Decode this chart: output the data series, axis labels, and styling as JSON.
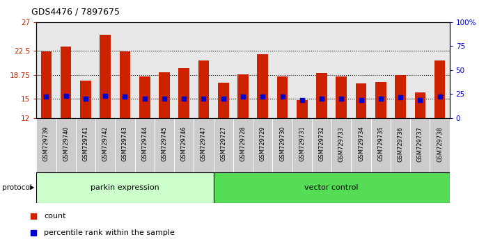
{
  "title": "GDS4476 / 7897675",
  "samples": [
    "GSM729739",
    "GSM729740",
    "GSM729741",
    "GSM729742",
    "GSM729743",
    "GSM729744",
    "GSM729745",
    "GSM729746",
    "GSM729747",
    "GSM729727",
    "GSM729728",
    "GSM729729",
    "GSM729730",
    "GSM729731",
    "GSM729732",
    "GSM729733",
    "GSM729734",
    "GSM729735",
    "GSM729736",
    "GSM729737",
    "GSM729738"
  ],
  "bar_values": [
    22.4,
    23.2,
    17.9,
    25.0,
    22.4,
    18.5,
    19.2,
    19.8,
    21.0,
    17.5,
    18.8,
    22.0,
    18.5,
    14.8,
    19.0,
    18.5,
    17.4,
    17.6,
    18.7,
    16.0,
    21.0
  ],
  "percentile_values": [
    15.4,
    15.5,
    15.0,
    15.5,
    15.4,
    15.0,
    15.0,
    15.0,
    15.0,
    15.0,
    15.4,
    15.4,
    15.4,
    14.8,
    15.0,
    15.0,
    14.8,
    15.0,
    15.3,
    14.8,
    15.4
  ],
  "parkin_count": 9,
  "vector_count": 12,
  "ylim_left": [
    12,
    27
  ],
  "ylim_right": [
    0,
    100
  ],
  "yticks_left": [
    12,
    15,
    18.75,
    22.5,
    27
  ],
  "yticks_right": [
    0,
    25,
    50,
    75,
    100
  ],
  "bar_color": "#cc2200",
  "dot_color": "#0000cc",
  "parkin_bg": "#ccffcc",
  "vector_bg": "#55dd55",
  "protocol_label": "protocol",
  "parkin_label": "parkin expression",
  "vector_label": "vector control",
  "legend_count": "count",
  "legend_percentile": "percentile rank within the sample",
  "bg_plot": "#e8e8e8",
  "tick_label_bg": "#cccccc",
  "bar_width": 0.55
}
